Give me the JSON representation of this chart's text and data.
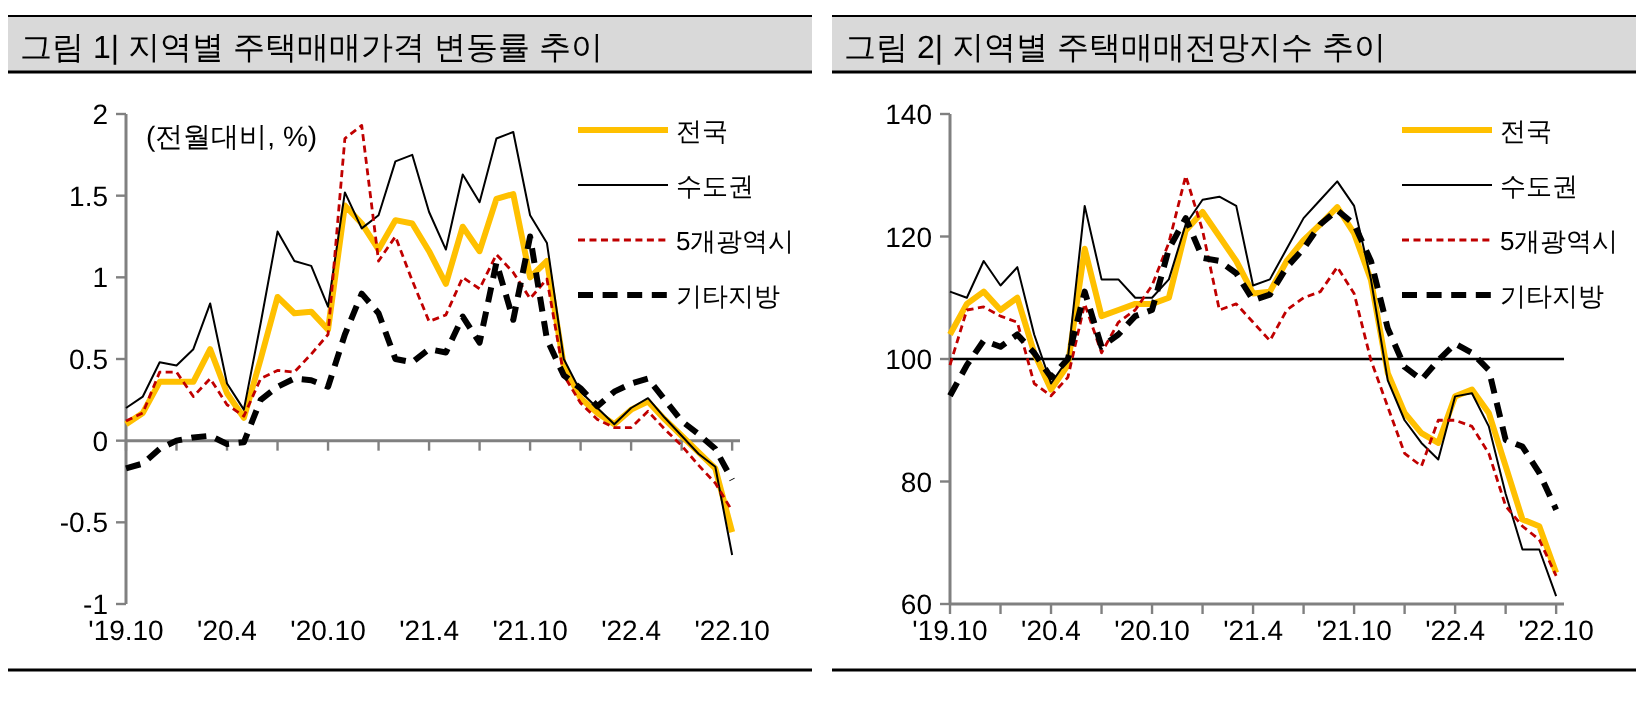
{
  "chart_data": [
    {
      "type": "line",
      "title": "그림 1| 지역별 주택매매가격 변동률 추이",
      "annotations": [
        "(전월대비, %)"
      ],
      "legend": "top right",
      "x": [
        "2019-10",
        "2019-11",
        "2019-12",
        "2020-01",
        "2020-02",
        "2020-03",
        "2020-04",
        "2020-05",
        "2020-06",
        "2020-07",
        "2020-08",
        "2020-09",
        "2020-10",
        "2020-11",
        "2020-12",
        "2021-01",
        "2021-02",
        "2021-03",
        "2021-04",
        "2021-05",
        "2021-06",
        "2021-07",
        "2021-08",
        "2021-09",
        "2021-10",
        "2021-11",
        "2021-12",
        "2022-01",
        "2022-02",
        "2022-03",
        "2022-04",
        "2022-05",
        "2022-06",
        "2022-07",
        "2022-08",
        "2022-09",
        "2022-10"
      ],
      "xlim": [
        "2019-10-01",
        "2022-10-15"
      ],
      "xticks": [
        {
          "value": "2019-10",
          "label": "'19.10"
        },
        {
          "value": "2020-01",
          "label": null
        },
        {
          "value": "2020-04",
          "label": "'20.4"
        },
        {
          "value": "2020-07",
          "label": null
        },
        {
          "value": "2020-10",
          "label": "'20.10"
        },
        {
          "value": "2021-01",
          "label": null
        },
        {
          "value": "2021-04",
          "label": "'21.4"
        },
        {
          "value": "2021-07",
          "label": null
        },
        {
          "value": "2021-10",
          "label": "'21.10"
        },
        {
          "value": "2022-01",
          "label": null
        },
        {
          "value": "2022-04",
          "label": "'22.4"
        },
        {
          "value": "2022-07",
          "label": null
        },
        {
          "value": "2022-10",
          "label": "'22.10"
        }
      ],
      "ylim": [
        -1,
        2
      ],
      "yticks": [
        -1,
        -0.5,
        0,
        0.5,
        1,
        1.5,
        2
      ],
      "series": [
        {
          "name": "전국",
          "color": "#ffc000",
          "line_style": "solid",
          "values": [
            0.1,
            0.17,
            0.36,
            0.36,
            0.36,
            0.56,
            0.29,
            0.14,
            0.5,
            0.88,
            0.78,
            0.79,
            0.68,
            1.44,
            1.33,
            1.17,
            1.35,
            1.33,
            1.16,
            0.96,
            1.31,
            1.16,
            1.48,
            1.51,
            1.0,
            1.1,
            0.46,
            0.26,
            0.17,
            0.1,
            0.19,
            0.24,
            0.13,
            0.03,
            -0.07,
            -0.17,
            -0.56
          ]
        },
        {
          "name": "수도권",
          "color": "#000000",
          "line_style": "solid",
          "values": [
            0.2,
            0.27,
            0.48,
            0.46,
            0.56,
            0.84,
            0.35,
            0.19,
            0.72,
            1.28,
            1.1,
            1.07,
            0.82,
            1.52,
            1.3,
            1.38,
            1.71,
            1.75,
            1.4,
            1.17,
            1.63,
            1.46,
            1.85,
            1.89,
            1.38,
            1.21,
            0.5,
            0.3,
            0.2,
            0.1,
            0.2,
            0.26,
            0.14,
            0.03,
            -0.08,
            -0.16,
            -0.7
          ]
        },
        {
          "name": "5개광역시",
          "color": "#c00000",
          "line_style": "dashed",
          "values": [
            0.12,
            0.17,
            0.42,
            0.42,
            0.27,
            0.38,
            0.22,
            0.15,
            0.38,
            0.43,
            0.42,
            0.53,
            0.65,
            1.85,
            1.93,
            1.1,
            1.25,
            0.98,
            0.73,
            0.77,
            1.0,
            0.93,
            1.14,
            1.03,
            0.87,
            0.99,
            0.4,
            0.23,
            0.13,
            0.08,
            0.08,
            0.18,
            0.07,
            -0.03,
            -0.15,
            -0.26,
            -0.43
          ]
        },
        {
          "name": "기타지방",
          "color": "#000000",
          "line_style": "dashed",
          "values": [
            -0.17,
            -0.14,
            -0.05,
            0.0,
            0.02,
            0.03,
            -0.02,
            -0.01,
            0.25,
            0.33,
            0.38,
            0.37,
            0.33,
            0.65,
            0.9,
            0.78,
            0.5,
            0.48,
            0.56,
            0.54,
            0.76,
            0.6,
            1.09,
            0.74,
            1.25,
            0.62,
            0.4,
            0.32,
            0.21,
            0.3,
            0.35,
            0.38,
            0.25,
            0.12,
            0.04,
            -0.05,
            -0.24
          ]
        }
      ]
    },
    {
      "type": "line",
      "title": "그림 2| 지역별 주택매매전망지수 추이",
      "legend": "top right",
      "grid": false,
      "x": [
        "2019-10",
        "2019-11",
        "2019-12",
        "2020-01",
        "2020-02",
        "2020-03",
        "2020-04",
        "2020-05",
        "2020-06",
        "2020-07",
        "2020-08",
        "2020-09",
        "2020-10",
        "2020-11",
        "2020-12",
        "2021-01",
        "2021-02",
        "2021-03",
        "2021-04",
        "2021-05",
        "2021-06",
        "2021-07",
        "2021-08",
        "2021-09",
        "2021-10",
        "2021-11",
        "2021-12",
        "2022-01",
        "2022-02",
        "2022-03",
        "2022-04",
        "2022-05",
        "2022-06",
        "2022-07",
        "2022-08",
        "2022-09",
        "2022-10"
      ],
      "xlim": [
        "2019-10-01",
        "2022-10-15"
      ],
      "xticks": [
        {
          "value": "2019-10",
          "label": "'19.10"
        },
        {
          "value": "2020-01",
          "label": null
        },
        {
          "value": "2020-04",
          "label": "'20.4"
        },
        {
          "value": "2020-07",
          "label": null
        },
        {
          "value": "2020-10",
          "label": "'20.10"
        },
        {
          "value": "2021-01",
          "label": null
        },
        {
          "value": "2021-04",
          "label": "'21.4"
        },
        {
          "value": "2021-07",
          "label": null
        },
        {
          "value": "2021-10",
          "label": "'21.10"
        },
        {
          "value": "2022-01",
          "label": null
        },
        {
          "value": "2022-04",
          "label": "'22.4"
        },
        {
          "value": "2022-07",
          "label": null
        },
        {
          "value": "2022-10",
          "label": "'22.10"
        }
      ],
      "ylim": [
        60,
        140
      ],
      "yticks": [
        60,
        80,
        100,
        120,
        140
      ],
      "ref_lines": [
        {
          "axis": "y",
          "value": 100,
          "color": "#000000"
        }
      ],
      "series": [
        {
          "name": "전국",
          "color": "#ffc000",
          "line_style": "solid",
          "values": [
            104,
            109,
            111,
            108,
            110,
            101,
            95,
            99,
            118,
            107,
            108,
            109,
            109,
            110,
            121,
            124,
            120,
            116,
            110.7,
            111,
            116,
            119.4,
            122,
            124.8,
            120.5,
            112.9,
            97.7,
            91.2,
            87.9,
            86.3,
            93.9,
            95,
            91.2,
            82.5,
            73.8,
            72.7,
            65.1
          ]
        },
        {
          "name": "수도권",
          "color": "#000000",
          "line_style": "solid",
          "values": [
            111,
            110,
            116,
            112,
            115,
            104,
            96,
            100,
            125,
            113,
            113,
            110,
            110,
            113,
            122,
            126,
            126.5,
            125,
            112,
            113,
            118,
            123,
            126,
            129,
            125,
            113,
            96.5,
            90,
            86.3,
            83.6,
            93.9,
            94.4,
            89,
            78,
            68.9,
            68.9,
            61.3
          ]
        },
        {
          "name": "5개광역시",
          "color": "#c00000",
          "line_style": "dashed",
          "values": [
            99,
            108,
            108.5,
            107,
            106,
            96,
            94,
            97,
            109,
            101,
            106,
            108,
            112,
            119,
            129.9,
            121,
            108,
            109,
            106,
            103,
            108,
            110,
            111,
            115,
            110.7,
            99.8,
            92.2,
            84.6,
            82.5,
            90,
            90,
            89,
            84.6,
            76,
            72.7,
            70.5,
            64.6
          ]
        },
        {
          "name": "기타지방",
          "color": "#000000",
          "line_style": "dashed",
          "values": [
            94,
            99,
            103,
            102,
            104,
            101,
            97,
            100,
            111,
            102,
            104,
            107,
            108,
            118,
            123,
            116.5,
            116,
            114,
            109.6,
            110.5,
            115,
            118,
            122,
            124.3,
            122,
            116,
            105,
            98.7,
            96.6,
            99.8,
            102.5,
            101,
            98.2,
            86.8,
            85.7,
            81.4,
            75.4
          ]
        }
      ]
    }
  ]
}
